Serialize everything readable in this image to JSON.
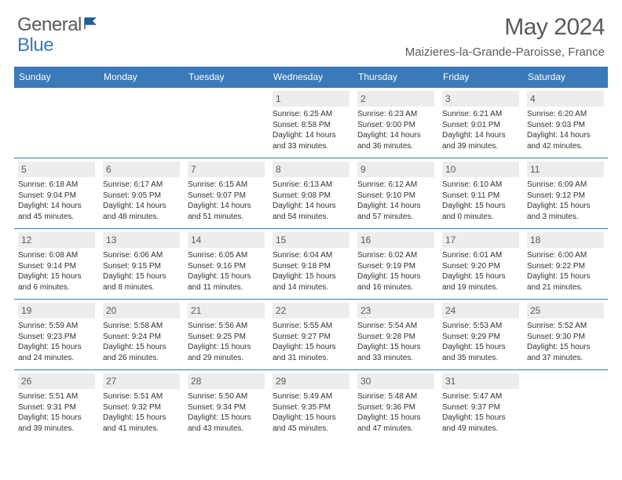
{
  "brand": {
    "name1": "General",
    "name2": "Blue"
  },
  "title": "May 2024",
  "location": "Maizieres-la-Grande-Paroisse, France",
  "colors": {
    "header_bg": "#3a7ab8",
    "daynum_bg": "#eceded",
    "text_gray": "#5a5a5a",
    "row_border": "#3a7ab8"
  },
  "day_headers": [
    "Sunday",
    "Monday",
    "Tuesday",
    "Wednesday",
    "Thursday",
    "Friday",
    "Saturday"
  ],
  "weeks": [
    [
      null,
      null,
      null,
      {
        "n": "1",
        "sr": "6:25 AM",
        "ss": "8:58 PM",
        "dl": "14 hours and 33 minutes."
      },
      {
        "n": "2",
        "sr": "6:23 AM",
        "ss": "9:00 PM",
        "dl": "14 hours and 36 minutes."
      },
      {
        "n": "3",
        "sr": "6:21 AM",
        "ss": "9:01 PM",
        "dl": "14 hours and 39 minutes."
      },
      {
        "n": "4",
        "sr": "6:20 AM",
        "ss": "9:03 PM",
        "dl": "14 hours and 42 minutes."
      }
    ],
    [
      {
        "n": "5",
        "sr": "6:18 AM",
        "ss": "9:04 PM",
        "dl": "14 hours and 45 minutes."
      },
      {
        "n": "6",
        "sr": "6:17 AM",
        "ss": "9:05 PM",
        "dl": "14 hours and 48 minutes."
      },
      {
        "n": "7",
        "sr": "6:15 AM",
        "ss": "9:07 PM",
        "dl": "14 hours and 51 minutes."
      },
      {
        "n": "8",
        "sr": "6:13 AM",
        "ss": "9:08 PM",
        "dl": "14 hours and 54 minutes."
      },
      {
        "n": "9",
        "sr": "6:12 AM",
        "ss": "9:10 PM",
        "dl": "14 hours and 57 minutes."
      },
      {
        "n": "10",
        "sr": "6:10 AM",
        "ss": "9:11 PM",
        "dl": "15 hours and 0 minutes."
      },
      {
        "n": "11",
        "sr": "6:09 AM",
        "ss": "9:12 PM",
        "dl": "15 hours and 3 minutes."
      }
    ],
    [
      {
        "n": "12",
        "sr": "6:08 AM",
        "ss": "9:14 PM",
        "dl": "15 hours and 6 minutes."
      },
      {
        "n": "13",
        "sr": "6:06 AM",
        "ss": "9:15 PM",
        "dl": "15 hours and 8 minutes."
      },
      {
        "n": "14",
        "sr": "6:05 AM",
        "ss": "9:16 PM",
        "dl": "15 hours and 11 minutes."
      },
      {
        "n": "15",
        "sr": "6:04 AM",
        "ss": "9:18 PM",
        "dl": "15 hours and 14 minutes."
      },
      {
        "n": "16",
        "sr": "6:02 AM",
        "ss": "9:19 PM",
        "dl": "15 hours and 16 minutes."
      },
      {
        "n": "17",
        "sr": "6:01 AM",
        "ss": "9:20 PM",
        "dl": "15 hours and 19 minutes."
      },
      {
        "n": "18",
        "sr": "6:00 AM",
        "ss": "9:22 PM",
        "dl": "15 hours and 21 minutes."
      }
    ],
    [
      {
        "n": "19",
        "sr": "5:59 AM",
        "ss": "9:23 PM",
        "dl": "15 hours and 24 minutes."
      },
      {
        "n": "20",
        "sr": "5:58 AM",
        "ss": "9:24 PM",
        "dl": "15 hours and 26 minutes."
      },
      {
        "n": "21",
        "sr": "5:56 AM",
        "ss": "9:25 PM",
        "dl": "15 hours and 29 minutes."
      },
      {
        "n": "22",
        "sr": "5:55 AM",
        "ss": "9:27 PM",
        "dl": "15 hours and 31 minutes."
      },
      {
        "n": "23",
        "sr": "5:54 AM",
        "ss": "9:28 PM",
        "dl": "15 hours and 33 minutes."
      },
      {
        "n": "24",
        "sr": "5:53 AM",
        "ss": "9:29 PM",
        "dl": "15 hours and 35 minutes."
      },
      {
        "n": "25",
        "sr": "5:52 AM",
        "ss": "9:30 PM",
        "dl": "15 hours and 37 minutes."
      }
    ],
    [
      {
        "n": "26",
        "sr": "5:51 AM",
        "ss": "9:31 PM",
        "dl": "15 hours and 39 minutes."
      },
      {
        "n": "27",
        "sr": "5:51 AM",
        "ss": "9:32 PM",
        "dl": "15 hours and 41 minutes."
      },
      {
        "n": "28",
        "sr": "5:50 AM",
        "ss": "9:34 PM",
        "dl": "15 hours and 43 minutes."
      },
      {
        "n": "29",
        "sr": "5:49 AM",
        "ss": "9:35 PM",
        "dl": "15 hours and 45 minutes."
      },
      {
        "n": "30",
        "sr": "5:48 AM",
        "ss": "9:36 PM",
        "dl": "15 hours and 47 minutes."
      },
      {
        "n": "31",
        "sr": "5:47 AM",
        "ss": "9:37 PM",
        "dl": "15 hours and 49 minutes."
      },
      null
    ]
  ],
  "labels": {
    "sunrise": "Sunrise:",
    "sunset": "Sunset:",
    "daylight": "Daylight:"
  }
}
